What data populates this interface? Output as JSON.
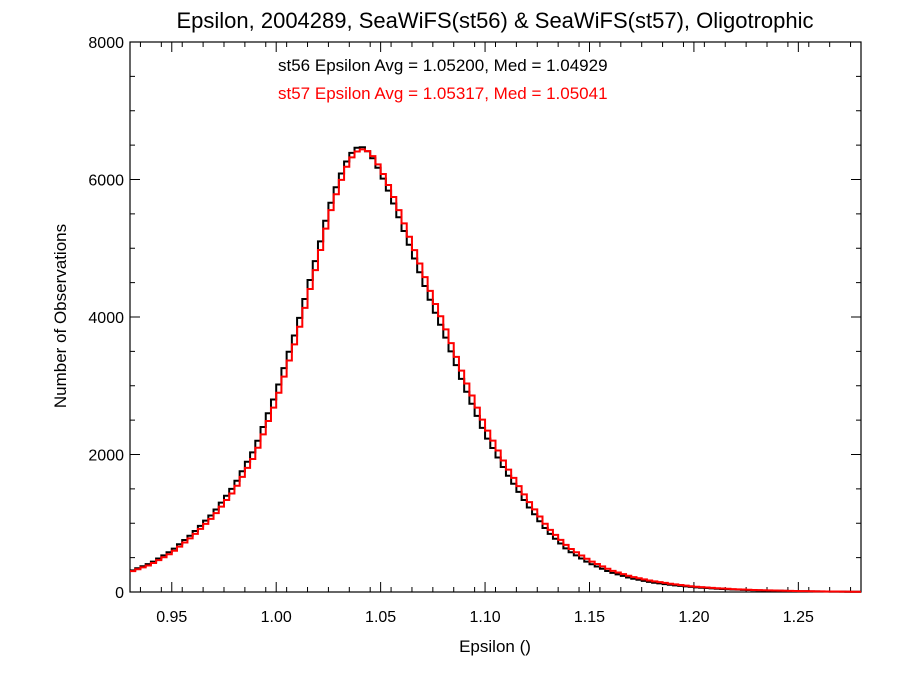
{
  "chart_data": {
    "type": "line",
    "title": "Epsilon, 2004289, SeaWiFS(st56) & SeaWiFS(st57), Oligotrophic",
    "xlabel": "Epsilon ()",
    "ylabel": "Number of Observations",
    "xlim": [
      0.93,
      1.28
    ],
    "ylim": [
      0,
      8000
    ],
    "x_ticks": [
      0.95,
      1.0,
      1.05,
      1.1,
      1.15,
      1.2,
      1.25
    ],
    "x_tick_labels": [
      "0.95",
      "1.00",
      "1.05",
      "1.10",
      "1.15",
      "1.20",
      "1.25"
    ],
    "y_ticks": [
      0,
      2000,
      4000,
      6000,
      8000
    ],
    "y_tick_labels": [
      "0",
      "2000",
      "4000",
      "6000",
      "8000"
    ],
    "grid": false,
    "step": true,
    "legend": [
      {
        "text": "st56 Epsilon Avg = 1.05200, Med = 1.04929",
        "color": "#000000"
      },
      {
        "text": "st57 Epsilon Avg = 1.05317, Med = 1.05041",
        "color": "#ff0000"
      }
    ],
    "x": [
      0.93,
      0.94,
      0.95,
      0.96,
      0.97,
      0.98,
      0.99,
      1.0,
      1.01,
      1.02,
      1.025,
      1.03,
      1.035,
      1.04,
      1.045,
      1.05,
      1.055,
      1.06,
      1.065,
      1.07,
      1.075,
      1.08,
      1.085,
      1.09,
      1.1,
      1.11,
      1.12,
      1.13,
      1.14,
      1.15,
      1.16,
      1.17,
      1.18,
      1.19,
      1.2,
      1.21,
      1.22,
      1.23,
      1.24,
      1.25,
      1.26,
      1.27,
      1.28
    ],
    "series": [
      {
        "color": "#000000",
        "values": [
          300,
          420,
          600,
          850,
          1150,
          1550,
          2100,
          2900,
          3850,
          4950,
          5550,
          6000,
          6350,
          6500,
          6380,
          6100,
          5750,
          5350,
          4950,
          4550,
          4150,
          3800,
          3400,
          3000,
          2300,
          1750,
          1280,
          880,
          600,
          420,
          290,
          200,
          140,
          100,
          70,
          50,
          35,
          25,
          18,
          12,
          8,
          5,
          3
        ]
      },
      {
        "color": "#ff0000",
        "values": [
          290,
          400,
          570,
          810,
          1100,
          1480,
          2000,
          2780,
          3720,
          4820,
          5440,
          5900,
          6280,
          6450,
          6400,
          6160,
          5840,
          5460,
          5070,
          4680,
          4280,
          3920,
          3520,
          3120,
          2420,
          1840,
          1360,
          940,
          650,
          460,
          320,
          225,
          160,
          115,
          80,
          57,
          40,
          28,
          20,
          14,
          9,
          6,
          3
        ]
      }
    ]
  }
}
